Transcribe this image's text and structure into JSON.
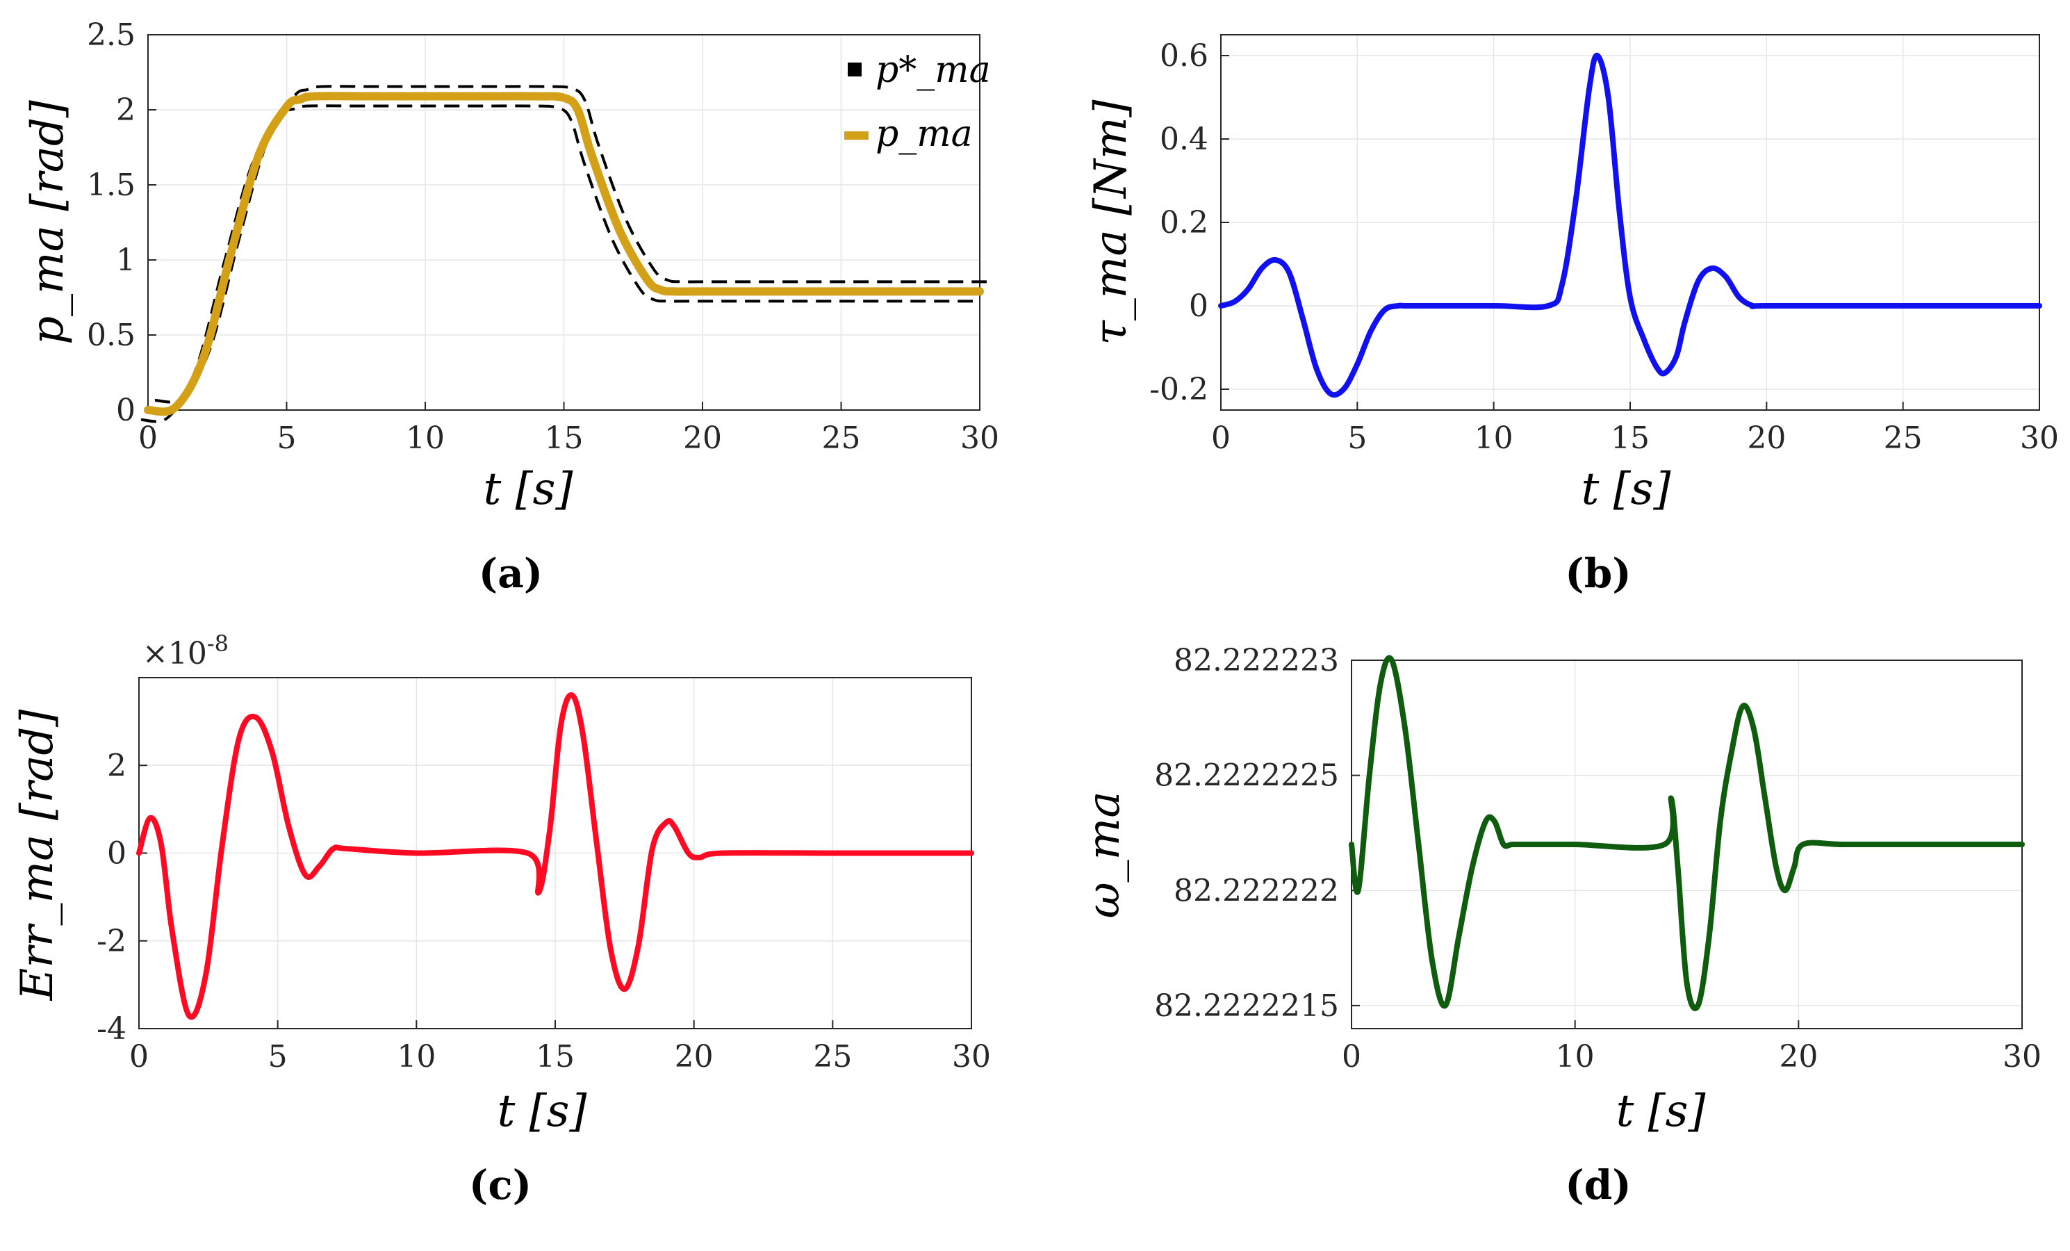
{
  "chart_data": [
    {
      "id": "a",
      "type": "line",
      "caption": "(a)",
      "xlabel": "t [s]",
      "ylabel": "p_ma [rad]",
      "xlim": [
        0,
        30
      ],
      "ylim": [
        0,
        2.5
      ],
      "xticks": [
        "0",
        "5",
        "10",
        "15",
        "20",
        "25",
        "30"
      ],
      "yticks": [
        "0",
        "0.5",
        "1",
        "1.5",
        "2",
        "2.5"
      ],
      "xtick_values": [
        0,
        5,
        10,
        15,
        20,
        25,
        30
      ],
      "ytick_values": [
        0,
        0.5,
        1,
        1.5,
        2,
        2.5
      ],
      "legend": [
        "p*_ma",
        "p_ma"
      ],
      "legend_position": "top-right",
      "series": [
        {
          "name": "p*_ma",
          "style": "dashed-band",
          "color": "#000000",
          "x": [
            0,
            1,
            2,
            3,
            4,
            5,
            5.5,
            6,
            8,
            10,
            12,
            14,
            15,
            15.5,
            16,
            17,
            18,
            18.5,
            19,
            20,
            25,
            30
          ],
          "y": [
            0,
            0.02,
            0.35,
            1.05,
            1.7,
            2.02,
            2.07,
            2.09,
            2.09,
            2.09,
            2.09,
            2.09,
            2.08,
            2.0,
            1.7,
            1.2,
            0.87,
            0.8,
            0.79,
            0.79,
            0.79,
            0.79
          ]
        },
        {
          "name": "p_ma",
          "style": "solid",
          "color": "#D4A017",
          "x": [
            0,
            1,
            2,
            3,
            4,
            5,
            5.5,
            6,
            8,
            10,
            12,
            14,
            15,
            15.5,
            16,
            17,
            18,
            18.5,
            19,
            20,
            25,
            30
          ],
          "y": [
            0,
            0.02,
            0.35,
            1.05,
            1.7,
            2.02,
            2.07,
            2.09,
            2.09,
            2.09,
            2.09,
            2.09,
            2.08,
            2.0,
            1.7,
            1.2,
            0.87,
            0.8,
            0.79,
            0.79,
            0.79,
            0.79
          ]
        }
      ]
    },
    {
      "id": "b",
      "type": "line",
      "caption": "(b)",
      "xlabel": "t [s]",
      "ylabel": "τ_ma [Nm]",
      "xlim": [
        0,
        30
      ],
      "ylim": [
        -0.25,
        0.65
      ],
      "xticks": [
        "0",
        "5",
        "10",
        "15",
        "20",
        "25",
        "30"
      ],
      "yticks": [
        "-0.2",
        "0",
        "0.2",
        "0.4",
        "0.6"
      ],
      "xtick_values": [
        0,
        5,
        10,
        15,
        20,
        25,
        30
      ],
      "ytick_values": [
        -0.2,
        0,
        0.2,
        0.4,
        0.6
      ],
      "series": [
        {
          "name": "τ_ma",
          "color": "#1010F0",
          "x": [
            0,
            0.5,
            1,
            1.5,
            2,
            2.5,
            3,
            3.5,
            4,
            4.5,
            5,
            5.5,
            6,
            6.5,
            7,
            10,
            12,
            12.5,
            13,
            13.5,
            13.8,
            14.2,
            14.6,
            15,
            15.5,
            16,
            16.3,
            16.7,
            17,
            17.5,
            18,
            18.5,
            19,
            19.5,
            20,
            25,
            30
          ],
          "y": [
            0,
            0.01,
            0.04,
            0.09,
            0.11,
            0.08,
            -0.03,
            -0.15,
            -0.21,
            -0.2,
            -0.14,
            -0.06,
            -0.01,
            0,
            0,
            0,
            0,
            0.05,
            0.25,
            0.52,
            0.6,
            0.5,
            0.23,
            0.02,
            -0.08,
            -0.15,
            -0.16,
            -0.12,
            -0.04,
            0.06,
            0.09,
            0.07,
            0.02,
            0,
            0,
            0,
            0
          ]
        }
      ]
    },
    {
      "id": "c",
      "type": "line",
      "caption": "(c)",
      "xlabel": "t [s]",
      "ylabel": "Err_ma [rad]",
      "exponent_label": "×10",
      "exponent_power": "-8",
      "xlim": [
        0,
        30
      ],
      "ylim": [
        -4,
        4
      ],
      "xticks": [
        "0",
        "5",
        "10",
        "15",
        "20",
        "25",
        "30"
      ],
      "yticks": [
        "-4",
        "-2",
        "0",
        "2"
      ],
      "xtick_values": [
        0,
        5,
        10,
        15,
        20,
        25,
        30
      ],
      "ytick_values": [
        -4,
        -2,
        0,
        2
      ],
      "series": [
        {
          "name": "Err_ma",
          "color": "#FF0A22",
          "x": [
            0,
            0.4,
            0.8,
            1.2,
            1.8,
            2.4,
            3,
            3.6,
            4.2,
            4.8,
            5.4,
            6,
            6.5,
            7,
            7.5,
            10,
            14,
            14.4,
            14.8,
            15.2,
            15.6,
            16,
            16.5,
            17,
            17.5,
            18,
            18.5,
            19,
            19.3,
            19.8,
            20.2,
            21,
            25,
            30
          ],
          "y": [
            0,
            0.8,
            0.2,
            -1.8,
            -3.7,
            -2.8,
            0.2,
            2.6,
            3.1,
            2.3,
            0.6,
            -0.5,
            -0.3,
            0.1,
            0.1,
            0,
            0,
            -0.9,
            0.5,
            2.9,
            3.6,
            2.7,
            0.2,
            -2.2,
            -3.1,
            -2.1,
            0.1,
            0.7,
            0.6,
            0,
            -0.1,
            0,
            0,
            0
          ]
        }
      ]
    },
    {
      "id": "d",
      "type": "line",
      "caption": "(d)",
      "xlabel": "t [s]",
      "ylabel": "ω_ma",
      "xlim": [
        0,
        30
      ],
      "ylim": [
        82.2222214,
        82.222223
      ],
      "xticks": [
        "0",
        "10",
        "20",
        "30"
      ],
      "yticks": [
        "82.2222215",
        "82.222222",
        "82.2222225",
        "82.222223"
      ],
      "xtick_values": [
        0,
        10,
        20,
        30
      ],
      "ytick_values": [
        82.2222215,
        82.222222,
        82.2222225,
        82.222223
      ],
      "series": [
        {
          "name": "ω_ma",
          "color": "#0F5C0F",
          "x": [
            0,
            0.3,
            0.8,
            1.3,
            1.8,
            2.4,
            3,
            3.6,
            4.2,
            4.8,
            5.4,
            6,
            6.4,
            6.8,
            7.2,
            8,
            10,
            14,
            14.3,
            14.6,
            15,
            15.5,
            16,
            16.5,
            17,
            17.5,
            18,
            18.5,
            19,
            19.4,
            19.8,
            20.2,
            22,
            25,
            30
          ],
          "y": [
            82.2222222,
            82.222222,
            82.2222225,
            82.2222229,
            82.222223,
            82.2222227,
            82.2222222,
            82.2222217,
            82.2222215,
            82.2222218,
            82.2222221,
            82.2222223,
            82.2222223,
            82.2222222,
            82.2222222,
            82.2222222,
            82.2222222,
            82.2222222,
            82.2222224,
            82.2222221,
            82.2222216,
            82.2222215,
            82.2222218,
            82.2222223,
            82.2222226,
            82.2222228,
            82.2222227,
            82.2222224,
            82.2222221,
            82.222222,
            82.2222221,
            82.2222222,
            82.2222222,
            82.2222222,
            82.2222222
          ]
        }
      ]
    }
  ]
}
